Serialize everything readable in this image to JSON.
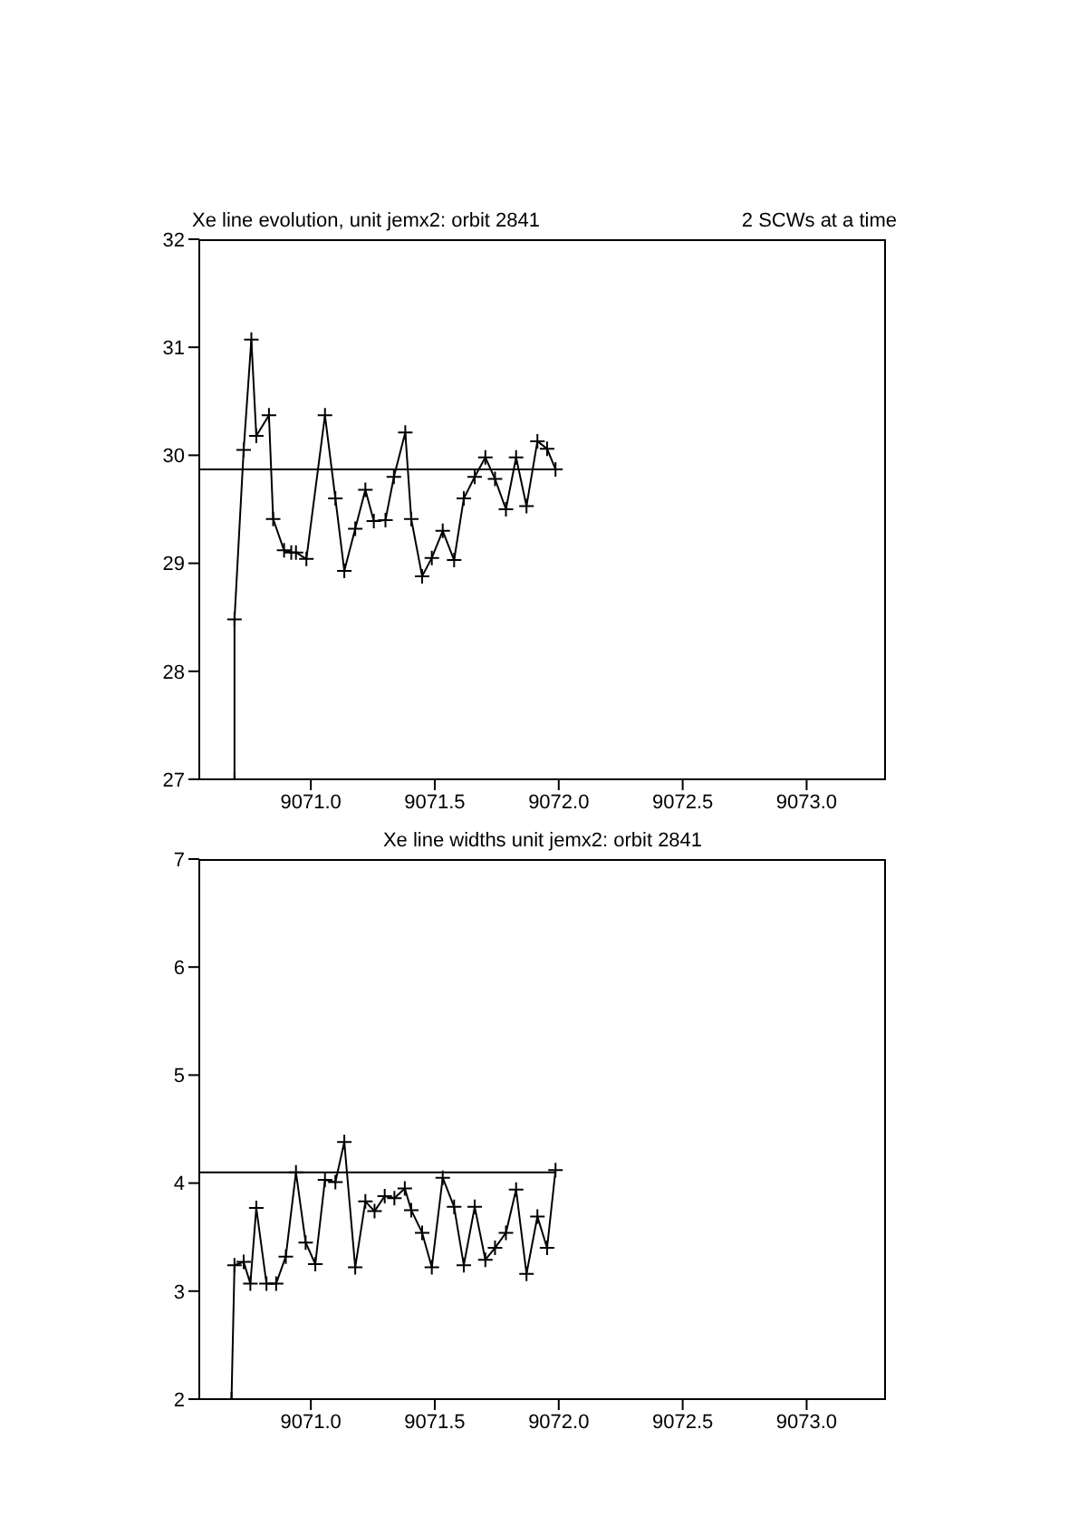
{
  "chart_data": [
    {
      "type": "line",
      "title": "Xe line evolution, unit jemx2: orbit 2841",
      "subtitle": "2 SCWs at a time",
      "xlim": [
        9070.55,
        9073.32
      ],
      "xticks": [
        {
          "value": 9071,
          "label": "9071.0"
        },
        {
          "value": 9071.5,
          "label": "9071.5"
        },
        {
          "value": 9072,
          "label": "9072.0"
        },
        {
          "value": 9072.5,
          "label": "9072.5"
        },
        {
          "value": 9073,
          "label": "9073.0"
        }
      ],
      "ylim": [
        27,
        32
      ],
      "yticks": [
        27,
        28,
        29,
        30,
        31,
        32
      ],
      "grid": false,
      "legend": false,
      "marker": "cross",
      "line_style": "solid",
      "series": [
        {
          "color": "#000000",
          "x": [
            9070.692,
            9070.692,
            9070.729,
            9070.76,
            9070.78,
            9070.831,
            9070.848,
            9070.892,
            9070.921,
            9070.94,
            9070.982,
            9071.057,
            9071.099,
            9071.135,
            9071.179,
            9071.22,
            9071.254,
            9071.301,
            9071.335,
            9071.381,
            9071.405,
            9071.449,
            9071.488,
            9071.532,
            9071.578,
            9071.617,
            9071.661,
            9071.704,
            9071.743,
            9071.787,
            9071.828,
            9071.87,
            9071.914,
            9071.953,
            9071.987
          ],
          "values": [
            27,
            28.48,
            30.05,
            31.07,
            30.18,
            30.37,
            29.41,
            29.12,
            29.1,
            29.1,
            29.04,
            30.37,
            29.6,
            28.93,
            29.32,
            29.68,
            29.39,
            29.4,
            29.8,
            30.21,
            29.41,
            28.88,
            29.05,
            29.3,
            29.03,
            29.6,
            29.8,
            29.98,
            29.78,
            29.5,
            29.98,
            29.53,
            30.13,
            30.06,
            29.87
          ]
        },
        {
          "type": "line",
          "color": "#000000",
          "marker": "none",
          "x": [
            9070.55,
            9071.987
          ],
          "values": [
            29.87,
            29.87
          ]
        }
      ]
    },
    {
      "type": "line",
      "title": "Xe line widths unit jemx2: orbit 2841",
      "xlim": [
        9070.55,
        9073.32
      ],
      "xticks": [
        {
          "value": 9071,
          "label": "9071.0"
        },
        {
          "value": 9071.5,
          "label": "9071.5"
        },
        {
          "value": 9072,
          "label": "9072.0"
        },
        {
          "value": 9072.5,
          "label": "9072.5"
        },
        {
          "value": 9073,
          "label": "9073.0"
        }
      ],
      "ylim": [
        2,
        7
      ],
      "yticks": [
        2,
        3,
        4,
        5,
        6,
        7
      ],
      "grid": false,
      "legend": false,
      "marker": "cross",
      "line_style": "solid",
      "series": [
        {
          "color": "#000000",
          "x": [
            9070.68,
            9070.692,
            9070.729,
            9070.756,
            9070.78,
            9070.821,
            9070.86,
            9070.899,
            9070.94,
            9070.979,
            9071.018,
            9071.057,
            9071.099,
            9071.135,
            9071.179,
            9071.22,
            9071.257,
            9071.298,
            9071.337,
            9071.379,
            9071.405,
            9071.449,
            9071.488,
            9071.532,
            9071.578,
            9071.617,
            9071.661,
            9071.704,
            9071.743,
            9071.787,
            9071.828,
            9071.87,
            9071.914,
            9071.953,
            9071.987
          ],
          "values": [
            2,
            3.24,
            3.27,
            3.07,
            3.77,
            3.07,
            3.07,
            3.32,
            4.1,
            3.45,
            3.25,
            4.03,
            4.01,
            4.38,
            3.22,
            3.83,
            3.74,
            3.88,
            3.86,
            3.95,
            3.75,
            3.54,
            3.22,
            4.05,
            3.78,
            3.24,
            3.78,
            3.29,
            3.4,
            3.54,
            3.94,
            3.16,
            3.69,
            3.4,
            4.12
          ]
        },
        {
          "type": "line",
          "color": "#000000",
          "marker": "none",
          "x": [
            9070.55,
            9071.987
          ],
          "values": [
            4.1,
            4.1
          ]
        }
      ]
    }
  ]
}
